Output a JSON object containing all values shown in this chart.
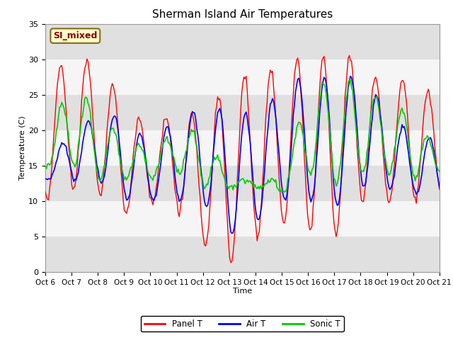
{
  "title": "Sherman Island Air Temperatures",
  "xlabel": "Time",
  "ylabel": "Temperature (C)",
  "ylim": [
    0,
    35
  ],
  "bg_color": "#ffffff",
  "plot_bg": "#e8e8e8",
  "band_color_light": "#f5f5f5",
  "band_color_dark": "#e0e0e0",
  "label_box_text": "SI_mixed",
  "label_box_facecolor": "#ffffcc",
  "label_box_edgecolor": "#8b6914",
  "label_box_textcolor": "#8b0000",
  "line_panel_color": "red",
  "line_air_color": "blue",
  "line_sonic_color": "#00cc00",
  "legend_labels": [
    "Panel T",
    "Air T",
    "Sonic T"
  ],
  "xtick_labels": [
    "Oct 6",
    "Oct 7",
    "Oct 8",
    "Oct 9",
    "Oct 10",
    "Oct 11",
    "Oct 12",
    "Oct 13",
    "Oct 14",
    "Oct 15",
    "Oct 16",
    "Oct 17",
    "Oct 18",
    "Oct 19",
    "Oct 20",
    "Oct 21"
  ],
  "ytick_labels": [
    0,
    5,
    10,
    15,
    20,
    25,
    30,
    35
  ],
  "total_days": 16,
  "figwidth": 6.4,
  "figheight": 4.8,
  "dpi": 100
}
